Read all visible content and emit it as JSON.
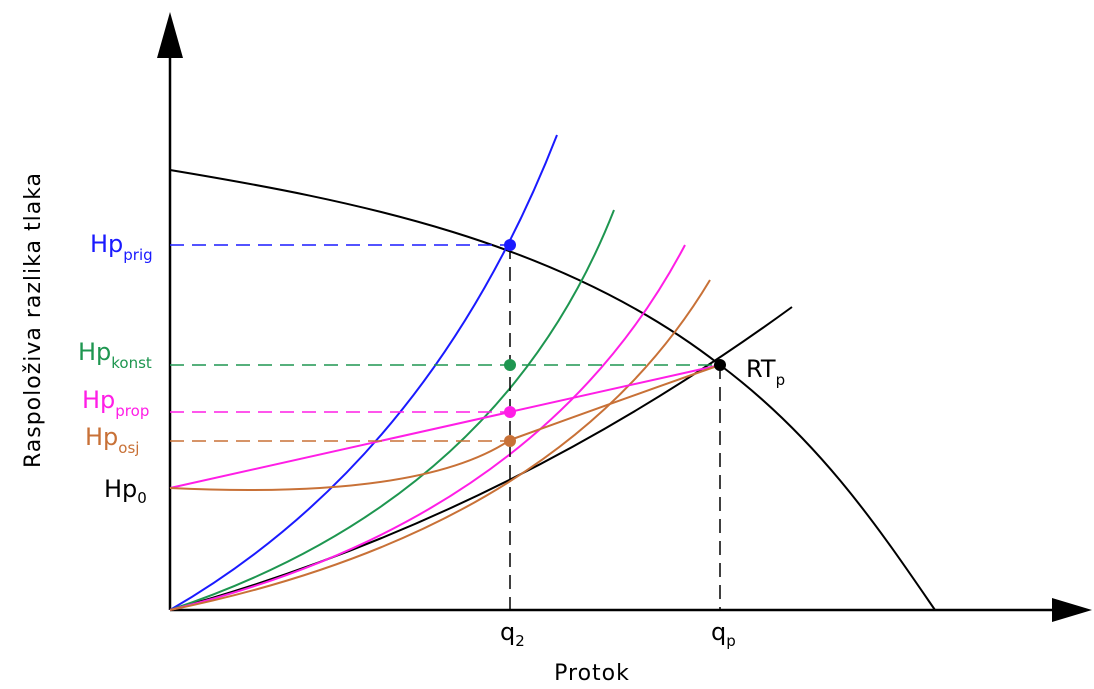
{
  "colors": {
    "axis": "#000000",
    "pump_curve": "#000000",
    "system_curve": "#000000",
    "prig": "#1a1aff",
    "konst": "#1e9650",
    "prop": "#ff1ee6",
    "osj": "#c87137"
  },
  "axes": {
    "x_title": "Protok",
    "y_title": "Raspoloživa razlika tlaka",
    "x_ticks": [
      {
        "base": "q",
        "sub": "2"
      },
      {
        "base": "q",
        "sub": "p"
      }
    ]
  },
  "labels": {
    "hp_prig": {
      "base": "Hp",
      "sub": "prig"
    },
    "hp_konst": {
      "base": "Hp",
      "sub": "konst"
    },
    "hp_prop": {
      "base": "Hp",
      "sub": "prop"
    },
    "hp_osj": {
      "base": "Hp",
      "sub": "osj"
    },
    "hp_0": {
      "base": "Hp",
      "sub": "0"
    },
    "rt_p": {
      "base": "RT",
      "sub": "p"
    }
  }
}
